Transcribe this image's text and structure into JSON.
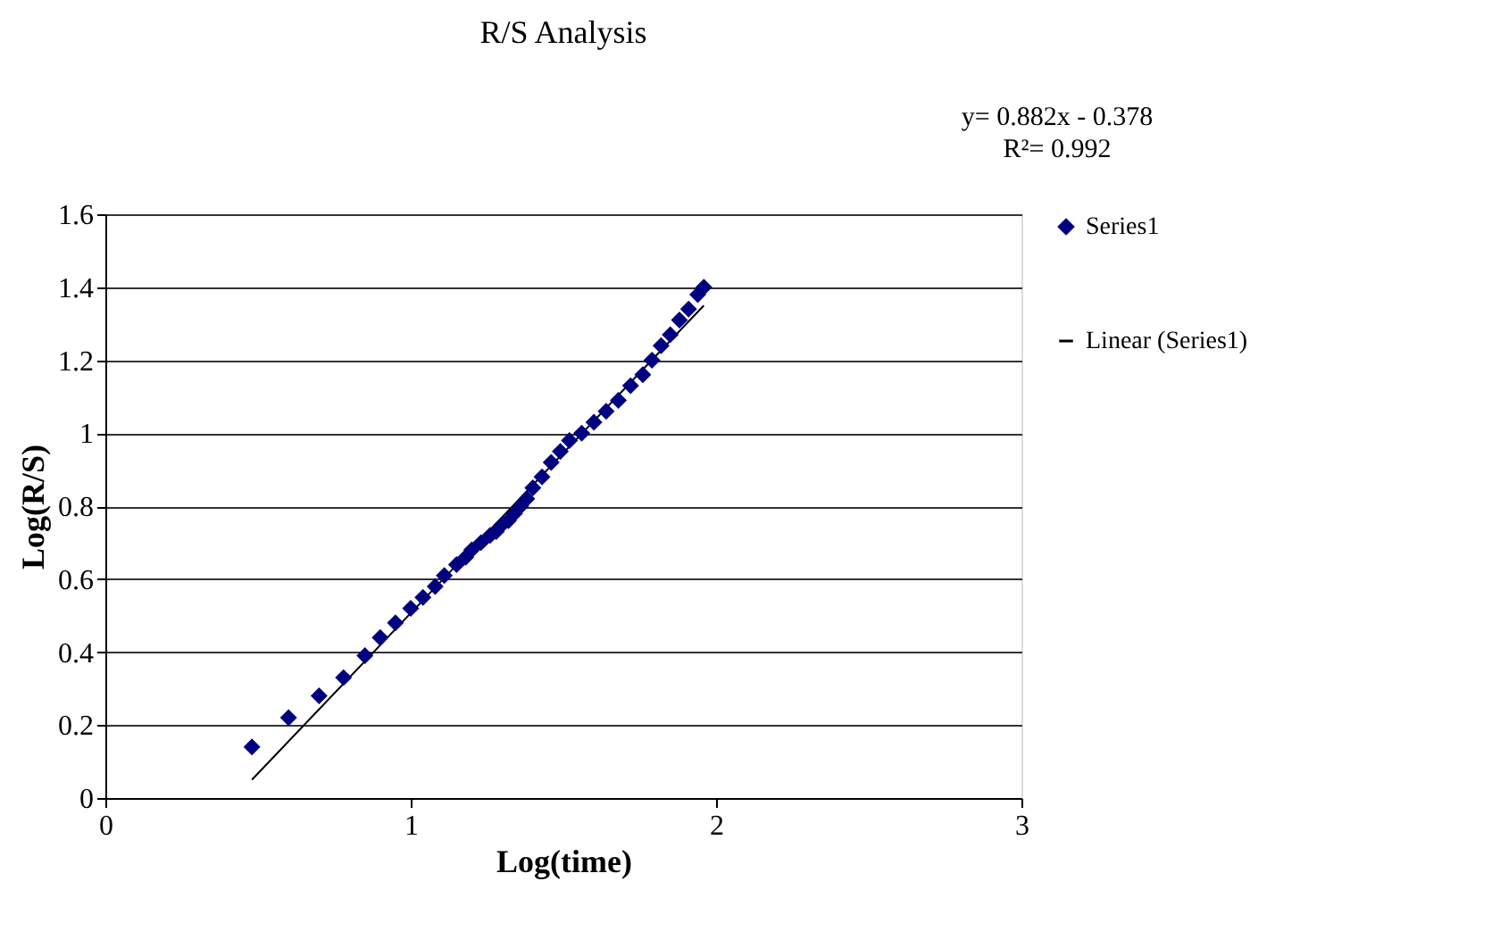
{
  "chart_data": {
    "type": "scatter",
    "title": "R/S Analysis",
    "xlabel": "Log(time)",
    "ylabel": "Log(R/S)",
    "annotations": [
      "y= 0.882x - 0.378",
      "R²= 0.992"
    ],
    "xlim": [
      0,
      3
    ],
    "xticks": [
      0,
      1,
      2,
      3
    ],
    "ylim": [
      0,
      1.6
    ],
    "yticks": [
      0,
      0.2,
      0.4,
      0.6,
      0.8,
      1,
      1.2,
      1.4,
      1.6
    ],
    "grid": "y",
    "legend": "right",
    "series": [
      {
        "name": "Series1",
        "marker": "diamond",
        "color": "#000080",
        "x": [
          0.48,
          0.6,
          0.7,
          0.78,
          0.85,
          0.9,
          0.95,
          1.0,
          1.04,
          1.08,
          1.11,
          1.15,
          1.18,
          1.2,
          1.23,
          1.26,
          1.28,
          1.3,
          1.32,
          1.34,
          1.36,
          1.38,
          1.4,
          1.43,
          1.46,
          1.49,
          1.52,
          1.56,
          1.6,
          1.64,
          1.68,
          1.72,
          1.76,
          1.79,
          1.82,
          1.85,
          1.88,
          1.91,
          1.94,
          1.96
        ],
        "values": [
          0.14,
          0.22,
          0.28,
          0.33,
          0.39,
          0.44,
          0.48,
          0.52,
          0.55,
          0.58,
          0.61,
          0.64,
          0.66,
          0.68,
          0.7,
          0.72,
          0.73,
          0.75,
          0.76,
          0.78,
          0.8,
          0.82,
          0.85,
          0.88,
          0.92,
          0.95,
          0.98,
          1.0,
          1.03,
          1.06,
          1.09,
          1.13,
          1.16,
          1.2,
          1.24,
          1.27,
          1.31,
          1.34,
          1.38,
          1.4
        ]
      },
      {
        "name": "Linear (Series1)",
        "type": "line",
        "line_style": "solid",
        "color": "#000000",
        "x": [
          0.48,
          1.96
        ],
        "values": [
          0.05,
          1.35
        ]
      }
    ]
  }
}
